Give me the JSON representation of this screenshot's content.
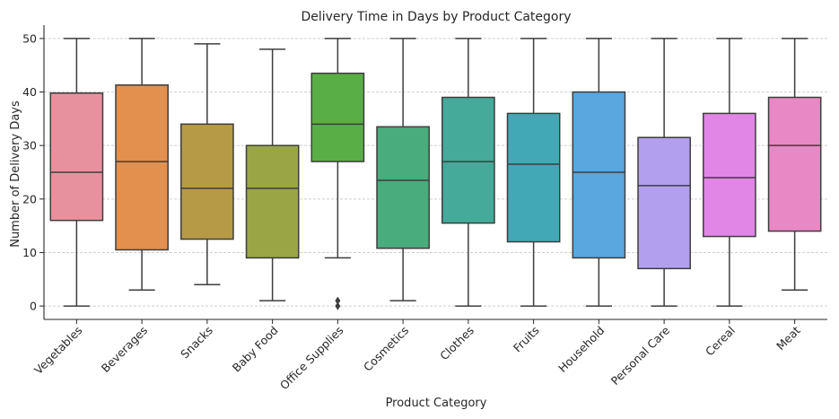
{
  "chart_data": {
    "type": "box",
    "title": "Delivery Time in Days by Product Category",
    "xlabel": "Product Category",
    "ylabel": "Number of Delivery Days",
    "ylim": [
      -2.5,
      52.5
    ],
    "yticks": [
      0,
      10,
      20,
      30,
      40,
      50
    ],
    "grid": "y-dashed",
    "categories": [
      "Vegetables",
      "Beverages",
      "Snacks",
      "Baby Food",
      "Office Supplies",
      "Cosmetics",
      "Clothes",
      "Fruits",
      "Household",
      "Personal Care",
      "Cereal",
      "Meat"
    ],
    "colors": [
      "#e8919e",
      "#e38f4e",
      "#b79a45",
      "#9aa646",
      "#5aae46",
      "#48ac7d",
      "#44aa9a",
      "#43a8b6",
      "#5aa6de",
      "#b2a0ee",
      "#e186e6",
      "#e888c4"
    ],
    "boxes": [
      {
        "min": 0,
        "q1": 16,
        "median": 25,
        "q3": 39.8,
        "max": 50,
        "outliers": []
      },
      {
        "min": 3,
        "q1": 10.5,
        "median": 27,
        "q3": 41.3,
        "max": 50,
        "outliers": []
      },
      {
        "min": 4,
        "q1": 12.5,
        "median": 22,
        "q3": 34,
        "max": 49,
        "outliers": []
      },
      {
        "min": 1,
        "q1": 9,
        "median": 22,
        "q3": 30,
        "max": 48,
        "outliers": []
      },
      {
        "min": 9,
        "q1": 27,
        "median": 34,
        "q3": 43.5,
        "max": 50,
        "outliers": [
          0,
          1
        ]
      },
      {
        "min": 1,
        "q1": 10.8,
        "median": 23.5,
        "q3": 33.5,
        "max": 50,
        "outliers": []
      },
      {
        "min": 0,
        "q1": 15.5,
        "median": 27,
        "q3": 39,
        "max": 50,
        "outliers": []
      },
      {
        "min": 0,
        "q1": 12,
        "median": 26.5,
        "q3": 36,
        "max": 50,
        "outliers": []
      },
      {
        "min": 0,
        "q1": 9,
        "median": 25,
        "q3": 40,
        "max": 50,
        "outliers": []
      },
      {
        "min": 0,
        "q1": 7,
        "median": 22.5,
        "q3": 31.5,
        "max": 50,
        "outliers": []
      },
      {
        "min": 0,
        "q1": 13,
        "median": 24,
        "q3": 36,
        "max": 50,
        "outliers": []
      },
      {
        "min": 3,
        "q1": 14,
        "median": 30,
        "q3": 39,
        "max": 50,
        "outliers": []
      }
    ]
  }
}
